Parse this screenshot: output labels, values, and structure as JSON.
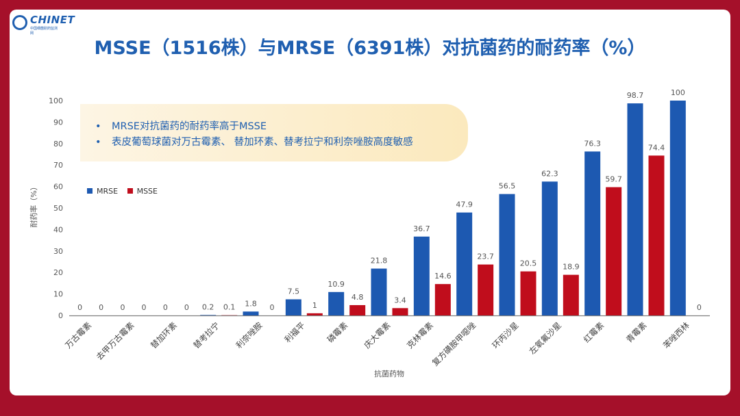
{
  "logo": {
    "word": "CHINET",
    "sub1": "中国细菌耐药监测网",
    "sub2": ""
  },
  "title": "MSSE（1516株）与MRSE（6391株）对抗菌药的耐药率（%）",
  "notes": [
    "MRSE对抗菌药的耐药率高于MSSE",
    "表皮葡萄球菌对万古霉素、 替加环素、替考拉宁和利奈唑胺高度敏感"
  ],
  "colors": {
    "MRSE": "#1d59b1",
    "MSSE": "#c00d1c"
  },
  "chart_data": {
    "type": "bar",
    "xlabel": "抗菌药物",
    "ylabel": "耐药率（%）",
    "ylim": [
      0,
      100
    ],
    "yticks": [
      "0",
      "10",
      "20",
      "30",
      "40",
      "50",
      "60",
      "70",
      "80",
      "90",
      "100"
    ],
    "legend_position": "upper-left",
    "categories": [
      "万古霉素",
      "去甲万古霉素",
      "替加环素",
      "替考拉宁",
      "利奈唑胺",
      "利福平",
      "磷霉素",
      "庆大霉素",
      "克林霉素",
      "复方磺胺甲噁唑",
      "环丙沙星",
      "左氧氟沙星",
      "红霉素",
      "青霉素",
      "苯唑西林"
    ],
    "series": [
      {
        "name": "MRSE",
        "values": [
          0,
          0,
          0,
          0.2,
          1.8,
          7.5,
          10.9,
          21.8,
          36.7,
          47.9,
          56.5,
          62.3,
          76.3,
          98.7,
          100
        ]
      },
      {
        "name": "MSSE",
        "values": [
          0,
          0,
          0,
          0.1,
          0,
          1,
          4.8,
          3.4,
          14.6,
          23.7,
          20.5,
          18.9,
          59.7,
          74.4,
          0
        ]
      }
    ]
  }
}
